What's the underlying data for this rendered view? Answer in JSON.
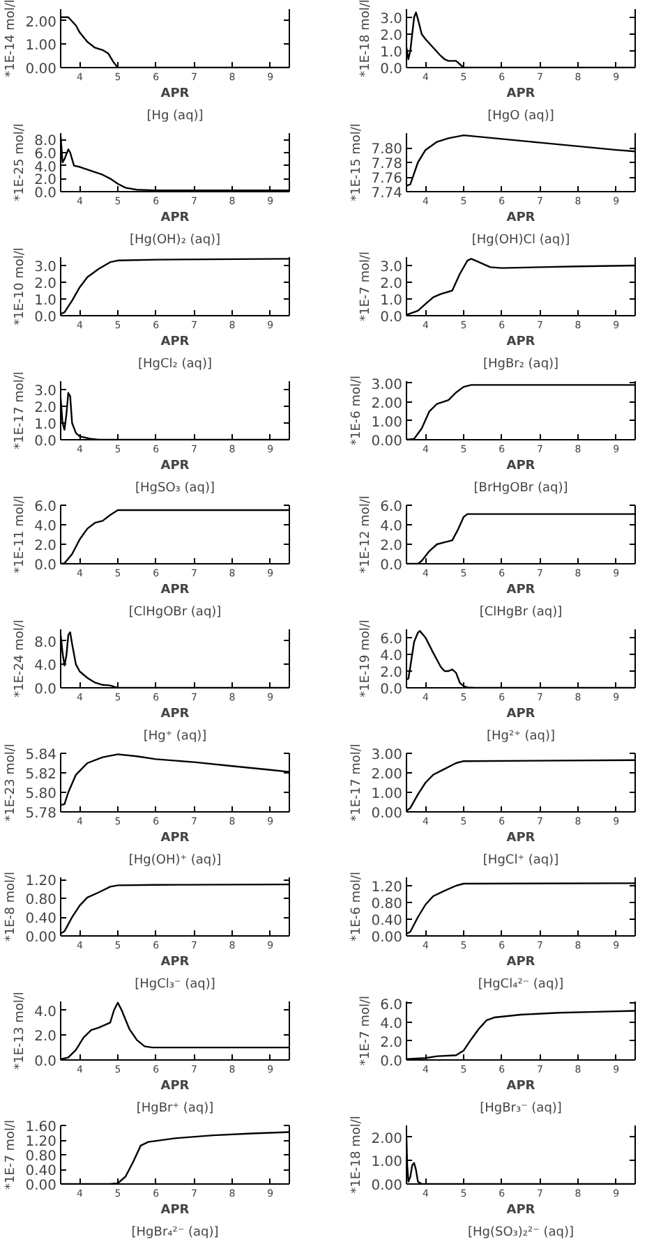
{
  "chart_data": [
    {
      "type": "line",
      "title": "[Hg (aq)]",
      "xlabel": "APR",
      "ylabel": "*1E-14 mol/l",
      "color": "#000000",
      "xlim": [
        3.5,
        9.5
      ],
      "xticks": [
        4,
        5,
        6,
        7,
        8,
        9
      ],
      "ylim": [
        0,
        2.5
      ],
      "yticks": [
        {
          "value": 0,
          "label": "0.00"
        },
        {
          "value": 1,
          "label": "1.00"
        },
        {
          "value": 2,
          "label": "2.00"
        }
      ],
      "x": [
        3.5,
        3.7,
        3.9,
        4.0,
        4.2,
        4.4,
        4.6,
        4.75,
        4.9,
        5.0,
        9.5
      ],
      "values": [
        2.15,
        2.15,
        1.8,
        1.5,
        1.1,
        0.85,
        0.75,
        0.6,
        0.2,
        0.0,
        0.0
      ]
    },
    {
      "type": "line",
      "title": "[HgO (aq)]",
      "xlabel": "APR",
      "ylabel": "*1E-18 mol/l",
      "color": "#000000",
      "xlim": [
        3.5,
        9.5
      ],
      "xticks": [
        4,
        5,
        6,
        7,
        8,
        9
      ],
      "ylim": [
        0,
        3.5
      ],
      "yticks": [
        {
          "value": 0,
          "label": "0.0"
        },
        {
          "value": 1,
          "label": "1.0"
        },
        {
          "value": 2,
          "label": "2.0"
        },
        {
          "value": 3,
          "label": "3.0"
        }
      ],
      "x": [
        3.5,
        3.55,
        3.6,
        3.7,
        3.75,
        3.8,
        3.9,
        4.0,
        4.2,
        4.4,
        4.5,
        4.6,
        4.8,
        4.9,
        5.0,
        9.5
      ],
      "values": [
        1.2,
        0.5,
        1.0,
        3.0,
        3.3,
        2.9,
        2.0,
        1.7,
        1.2,
        0.7,
        0.5,
        0.4,
        0.4,
        0.2,
        0.0,
        0.0
      ]
    },
    {
      "type": "line",
      "title": "[Hg(OH)₂ (aq)]",
      "xlabel": "APR",
      "ylabel": "*1E-25 mol/l",
      "color": "#000000",
      "xlim": [
        3.5,
        9.5
      ],
      "xticks": [
        4,
        5,
        6,
        7,
        8,
        9
      ],
      "ylim": [
        0,
        9
      ],
      "yticks": [
        {
          "value": 0,
          "label": "0.0"
        },
        {
          "value": 2,
          "label": "2.0"
        },
        {
          "value": 4,
          "label": "4.0"
        },
        {
          "value": 6,
          "label": "6.0"
        },
        {
          "value": 8,
          "label": "8.0"
        }
      ],
      "x": [
        3.5,
        3.55,
        3.6,
        3.7,
        3.75,
        3.85,
        4.0,
        4.3,
        4.6,
        4.8,
        5.0,
        5.2,
        5.5,
        6.0,
        9.5
      ],
      "values": [
        8.5,
        4.5,
        5.0,
        6.5,
        6.0,
        4.0,
        3.8,
        3.2,
        2.6,
        2.0,
        1.2,
        0.6,
        0.3,
        0.2,
        0.2
      ]
    },
    {
      "type": "line",
      "title": "[Hg(OH)Cl (aq)]",
      "xlabel": "APR",
      "ylabel": "*1E-15 mol/l",
      "color": "#000000",
      "xlim": [
        3.5,
        9.5
      ],
      "xticks": [
        4,
        5,
        6,
        7,
        8,
        9
      ],
      "ylim": [
        7.74,
        7.82
      ],
      "yticks": [
        {
          "value": 7.74,
          "label": "7.74"
        },
        {
          "value": 7.76,
          "label": "7.76"
        },
        {
          "value": 7.78,
          "label": "7.78"
        },
        {
          "value": 7.8,
          "label": "7.80"
        }
      ],
      "x": [
        3.5,
        3.6,
        3.7,
        3.8,
        4.0,
        4.3,
        4.6,
        5.0,
        6.0,
        7.0,
        8.0,
        9.0,
        9.5
      ],
      "values": [
        7.748,
        7.75,
        7.765,
        7.78,
        7.797,
        7.808,
        7.813,
        7.817,
        7.812,
        7.807,
        7.802,
        7.797,
        7.795
      ]
    },
    {
      "type": "line",
      "title": "[HgCl₂ (aq)]",
      "xlabel": "APR",
      "ylabel": "*1E-10 mol/l",
      "color": "#000000",
      "xlim": [
        3.5,
        9.5
      ],
      "xticks": [
        4,
        5,
        6,
        7,
        8,
        9
      ],
      "ylim": [
        0,
        3.5
      ],
      "yticks": [
        {
          "value": 0,
          "label": "0.0"
        },
        {
          "value": 1,
          "label": "1.0"
        },
        {
          "value": 2,
          "label": "2.0"
        },
        {
          "value": 3,
          "label": "3.0"
        }
      ],
      "x": [
        3.5,
        3.6,
        3.8,
        4.0,
        4.2,
        4.5,
        4.8,
        5.0,
        6.0,
        9.5
      ],
      "values": [
        0.1,
        0.2,
        0.9,
        1.7,
        2.3,
        2.8,
        3.2,
        3.3,
        3.35,
        3.4
      ]
    },
    {
      "type": "line",
      "title": "[HgBr₂ (aq)]",
      "xlabel": "APR",
      "ylabel": "*1E-7 mol/l",
      "color": "#000000",
      "xlim": [
        3.5,
        9.5
      ],
      "xticks": [
        4,
        5,
        6,
        7,
        8,
        9
      ],
      "ylim": [
        0,
        3.5
      ],
      "yticks": [
        {
          "value": 0,
          "label": "0.0"
        },
        {
          "value": 1,
          "label": "1.0"
        },
        {
          "value": 2,
          "label": "2.0"
        },
        {
          "value": 3,
          "label": "3.0"
        }
      ],
      "x": [
        3.5,
        3.8,
        4.0,
        4.2,
        4.4,
        4.7,
        4.9,
        5.1,
        5.2,
        5.4,
        5.7,
        6.0,
        7.0,
        8.0,
        9.5
      ],
      "values": [
        0.05,
        0.3,
        0.7,
        1.1,
        1.3,
        1.5,
        2.5,
        3.3,
        3.4,
        3.2,
        2.9,
        2.85,
        2.9,
        2.95,
        3.0
      ]
    },
    {
      "type": "line",
      "title": "[HgSO₃ (aq)]",
      "xlabel": "APR",
      "ylabel": "*1E-17 mol/l",
      "color": "#000000",
      "xlim": [
        3.5,
        9.5
      ],
      "xticks": [
        4,
        5,
        6,
        7,
        8,
        9
      ],
      "ylim": [
        0,
        3.5
      ],
      "yticks": [
        {
          "value": 0,
          "label": "0.0"
        },
        {
          "value": 1,
          "label": "1.0"
        },
        {
          "value": 2,
          "label": "2.0"
        },
        {
          "value": 3,
          "label": "3.0"
        }
      ],
      "x": [
        3.5,
        3.55,
        3.6,
        3.65,
        3.7,
        3.75,
        3.8,
        3.9,
        4.0,
        4.3,
        4.5,
        9.5
      ],
      "values": [
        2.5,
        1.0,
        0.6,
        1.5,
        2.8,
        2.6,
        1.0,
        0.4,
        0.2,
        0.05,
        0.0,
        0.0
      ]
    },
    {
      "type": "line",
      "title": "[BrHgOBr (aq)]",
      "xlabel": "APR",
      "ylabel": "*1E-6 mol/l",
      "color": "#000000",
      "xlim": [
        3.5,
        9.5
      ],
      "xticks": [
        4,
        5,
        6,
        7,
        8,
        9
      ],
      "ylim": [
        0,
        3.1
      ],
      "yticks": [
        {
          "value": 0,
          "label": "0.00"
        },
        {
          "value": 1,
          "label": "1.00"
        },
        {
          "value": 2,
          "label": "2.00"
        },
        {
          "value": 3,
          "label": "3.00"
        }
      ],
      "x": [
        3.5,
        3.7,
        3.9,
        4.1,
        4.3,
        4.6,
        4.8,
        5.0,
        5.2,
        9.5
      ],
      "values": [
        0.0,
        0.05,
        0.6,
        1.5,
        1.9,
        2.1,
        2.5,
        2.8,
        2.9,
        2.9
      ]
    },
    {
      "type": "line",
      "title": "[ClHgOBr (aq)]",
      "xlabel": "APR",
      "ylabel": "*1E-11 mol/l",
      "color": "#000000",
      "xlim": [
        3.5,
        9.5
      ],
      "xticks": [
        4,
        5,
        6,
        7,
        8,
        9
      ],
      "ylim": [
        0,
        6
      ],
      "yticks": [
        {
          "value": 0,
          "label": "0.0"
        },
        {
          "value": 2,
          "label": "2.0"
        },
        {
          "value": 4,
          "label": "4.0"
        },
        {
          "value": 6,
          "label": "6.0"
        }
      ],
      "x": [
        3.5,
        3.6,
        3.8,
        4.0,
        4.2,
        4.4,
        4.6,
        4.8,
        5.0,
        9.5
      ],
      "values": [
        0.0,
        0.05,
        1.0,
        2.5,
        3.6,
        4.2,
        4.4,
        5.0,
        5.5,
        5.5
      ]
    },
    {
      "type": "line",
      "title": "[ClHgBr (aq)]",
      "xlabel": "APR",
      "ylabel": "*1E-12 mol/l",
      "color": "#000000",
      "xlim": [
        3.5,
        9.5
      ],
      "xticks": [
        4,
        5,
        6,
        7,
        8,
        9
      ],
      "ylim": [
        0,
        6
      ],
      "yticks": [
        {
          "value": 0,
          "label": "0.0"
        },
        {
          "value": 2,
          "label": "2.0"
        },
        {
          "value": 4,
          "label": "4.0"
        },
        {
          "value": 6,
          "label": "6.0"
        }
      ],
      "x": [
        3.5,
        3.8,
        3.9,
        4.1,
        4.3,
        4.5,
        4.7,
        4.85,
        5.0,
        5.1,
        9.5
      ],
      "values": [
        0.0,
        0.0,
        0.3,
        1.3,
        2.0,
        2.2,
        2.4,
        3.5,
        4.8,
        5.1,
        5.1
      ]
    },
    {
      "type": "line",
      "title": "[Hg⁺ (aq)]",
      "xlabel": "APR",
      "ylabel": "*1E-24 mol/l",
      "color": "#000000",
      "xlim": [
        3.5,
        9.5
      ],
      "xticks": [
        4,
        5,
        6,
        7,
        8,
        9
      ],
      "ylim": [
        0,
        10
      ],
      "yticks": [
        {
          "value": 0,
          "label": "0.0"
        },
        {
          "value": 4,
          "label": "4.0"
        },
        {
          "value": 8,
          "label": "8.0"
        }
      ],
      "x": [
        3.5,
        3.55,
        3.6,
        3.65,
        3.7,
        3.75,
        3.8,
        3.9,
        4.0,
        4.2,
        4.4,
        4.6,
        4.8,
        4.9,
        5.0,
        9.5
      ],
      "values": [
        9.0,
        6.0,
        3.8,
        5.5,
        9.0,
        9.5,
        7.5,
        4.0,
        2.8,
        1.7,
        0.9,
        0.5,
        0.4,
        0.2,
        0.0,
        0.0
      ]
    },
    {
      "type": "line",
      "title": "[Hg²⁺ (aq)]",
      "xlabel": "APR",
      "ylabel": "*1E-19 mol/l",
      "color": "#000000",
      "xlim": [
        3.5,
        9.5
      ],
      "xticks": [
        4,
        5,
        6,
        7,
        8,
        9
      ],
      "ylim": [
        0,
        7
      ],
      "yticks": [
        {
          "value": 0,
          "label": "0.0"
        },
        {
          "value": 2,
          "label": "2.0"
        },
        {
          "value": 4,
          "label": "4.0"
        },
        {
          "value": 6,
          "label": "6.0"
        }
      ],
      "x": [
        3.5,
        3.55,
        3.6,
        3.7,
        3.8,
        3.85,
        4.0,
        4.2,
        4.4,
        4.5,
        4.6,
        4.7,
        4.8,
        4.9,
        5.0,
        5.1,
        5.3,
        9.5
      ],
      "values": [
        1.0,
        1.1,
        2.5,
        5.5,
        6.6,
        6.8,
        6.0,
        4.2,
        2.5,
        2.0,
        2.0,
        2.2,
        1.8,
        0.6,
        0.2,
        0.05,
        0.0,
        0.0
      ]
    },
    {
      "type": "line",
      "title": "[Hg(OH)⁺ (aq)]",
      "xlabel": "APR",
      "ylabel": "*1E-23 mol/l",
      "color": "#000000",
      "xlim": [
        3.5,
        9.5
      ],
      "xticks": [
        4,
        5,
        6,
        7,
        8,
        9
      ],
      "ylim": [
        5.78,
        5.84
      ],
      "yticks": [
        {
          "value": 5.78,
          "label": "5.78"
        },
        {
          "value": 5.8,
          "label": "5.80"
        },
        {
          "value": 5.82,
          "label": "5.82"
        },
        {
          "value": 5.84,
          "label": "5.84"
        }
      ],
      "x": [
        3.5,
        3.6,
        3.7,
        3.9,
        4.2,
        4.6,
        5.0,
        5.5,
        6.0,
        7.0,
        8.0,
        9.0,
        9.5
      ],
      "values": [
        5.787,
        5.788,
        5.8,
        5.818,
        5.83,
        5.836,
        5.839,
        5.837,
        5.834,
        5.831,
        5.827,
        5.823,
        5.821
      ]
    },
    {
      "type": "line",
      "title": "[HgCl⁺ (aq)]",
      "xlabel": "APR",
      "ylabel": "*1E-17 mol/l",
      "color": "#000000",
      "xlim": [
        3.5,
        9.5
      ],
      "xticks": [
        4,
        5,
        6,
        7,
        8,
        9
      ],
      "ylim": [
        0,
        3.0
      ],
      "yticks": [
        {
          "value": 0,
          "label": "0.00"
        },
        {
          "value": 1,
          "label": "1.00"
        },
        {
          "value": 2,
          "label": "2.00"
        },
        {
          "value": 3,
          "label": "3.00"
        }
      ],
      "x": [
        3.5,
        3.6,
        3.8,
        4.0,
        4.2,
        4.5,
        4.8,
        5.0,
        9.5
      ],
      "values": [
        0.05,
        0.2,
        0.9,
        1.5,
        1.9,
        2.2,
        2.5,
        2.6,
        2.65
      ]
    },
    {
      "type": "line",
      "title": "[HgCl₃⁻ (aq)]",
      "xlabel": "APR",
      "ylabel": "*1E-8 mol/l",
      "color": "#000000",
      "xlim": [
        3.5,
        9.5
      ],
      "xticks": [
        4,
        5,
        6,
        7,
        8,
        9
      ],
      "ylim": [
        0,
        1.25
      ],
      "yticks": [
        {
          "value": 0,
          "label": "0.00"
        },
        {
          "value": 0.4,
          "label": "0.40"
        },
        {
          "value": 0.8,
          "label": "0.80"
        },
        {
          "value": 1.2,
          "label": "1.20"
        }
      ],
      "x": [
        3.5,
        3.6,
        3.8,
        4.0,
        4.2,
        4.5,
        4.8,
        5.0,
        6.0,
        9.5
      ],
      "values": [
        0.05,
        0.1,
        0.4,
        0.65,
        0.82,
        0.93,
        1.05,
        1.08,
        1.09,
        1.1
      ]
    },
    {
      "type": "line",
      "title": "[HgCl₄²⁻ (aq)]",
      "xlabel": "APR",
      "ylabel": "*1E-6 mol/l",
      "color": "#000000",
      "xlim": [
        3.5,
        9.5
      ],
      "xticks": [
        4,
        5,
        6,
        7,
        8,
        9
      ],
      "ylim": [
        0,
        1.4
      ],
      "yticks": [
        {
          "value": 0,
          "label": "0.00"
        },
        {
          "value": 0.4,
          "label": "0.40"
        },
        {
          "value": 0.8,
          "label": "0.80"
        },
        {
          "value": 1.2,
          "label": "1.20"
        }
      ],
      "x": [
        3.5,
        3.6,
        3.8,
        4.0,
        4.2,
        4.5,
        4.8,
        5.0,
        9.5
      ],
      "values": [
        0.05,
        0.1,
        0.45,
        0.75,
        0.95,
        1.08,
        1.2,
        1.25,
        1.26
      ]
    },
    {
      "type": "line",
      "title": "[HgBr⁺ (aq)]",
      "xlabel": "APR",
      "ylabel": "*1E-13 mol/l",
      "color": "#000000",
      "xlim": [
        3.5,
        9.5
      ],
      "xticks": [
        4,
        5,
        6,
        7,
        8,
        9
      ],
      "ylim": [
        0,
        4.7
      ],
      "yticks": [
        {
          "value": 0,
          "label": "0.0"
        },
        {
          "value": 2,
          "label": "2.0"
        },
        {
          "value": 4,
          "label": "4.0"
        }
      ],
      "x": [
        3.5,
        3.7,
        3.9,
        4.1,
        4.3,
        4.5,
        4.8,
        4.9,
        5.0,
        5.1,
        5.3,
        5.5,
        5.7,
        5.9,
        9.5
      ],
      "values": [
        0.05,
        0.2,
        0.8,
        1.8,
        2.4,
        2.6,
        3.0,
        4.0,
        4.6,
        4.0,
        2.5,
        1.6,
        1.1,
        1.0,
        1.0
      ]
    },
    {
      "type": "line",
      "title": "[HgBr₃⁻ (aq)]",
      "xlabel": "APR",
      "ylabel": "*1E-7 mol/l",
      "color": "#000000",
      "xlim": [
        3.5,
        9.5
      ],
      "xticks": [
        4,
        5,
        6,
        7,
        8,
        9
      ],
      "ylim": [
        0,
        6.2
      ],
      "yticks": [
        {
          "value": 0,
          "label": "0.0"
        },
        {
          "value": 2,
          "label": "2.0"
        },
        {
          "value": 4,
          "label": "4.0"
        },
        {
          "value": 6,
          "label": "6.0"
        }
      ],
      "x": [
        3.5,
        4.0,
        4.3,
        4.8,
        5.0,
        5.2,
        5.4,
        5.6,
        5.8,
        6.5,
        7.5,
        8.5,
        9.5
      ],
      "values": [
        0.1,
        0.2,
        0.4,
        0.5,
        1.0,
        2.2,
        3.3,
        4.2,
        4.5,
        4.8,
        5.0,
        5.1,
        5.2
      ]
    },
    {
      "type": "line",
      "title": "[HgBr₄²⁻ (aq)]",
      "xlabel": "APR",
      "ylabel": "*1E-7 mol/l",
      "color": "#000000",
      "xlim": [
        3.5,
        9.5
      ],
      "xticks": [
        4,
        5,
        6,
        7,
        8,
        9
      ],
      "ylim": [
        0,
        1.6
      ],
      "yticks": [
        {
          "value": 0,
          "label": "0.00"
        },
        {
          "value": 0.4,
          "label": "0.40"
        },
        {
          "value": 0.8,
          "label": "0.80"
        },
        {
          "value": 1.2,
          "label": "1.20"
        },
        {
          "value": 1.6,
          "label": "1.60"
        }
      ],
      "x": [
        3.5,
        4.8,
        5.0,
        5.2,
        5.4,
        5.6,
        5.8,
        6.5,
        7.5,
        8.5,
        9.5
      ],
      "values": [
        0.0,
        0.0,
        0.02,
        0.2,
        0.6,
        1.05,
        1.15,
        1.25,
        1.33,
        1.38,
        1.42
      ]
    },
    {
      "type": "line",
      "title": "[Hg(SO₃)₂²⁻ (aq)]",
      "xlabel": "APR",
      "ylabel": "*1E-18 mol/l",
      "color": "#000000",
      "xlim": [
        3.5,
        9.5
      ],
      "xticks": [
        4,
        5,
        6,
        7,
        8,
        9
      ],
      "ylim": [
        0,
        2.5
      ],
      "yticks": [
        {
          "value": 0,
          "label": "0.00"
        },
        {
          "value": 1,
          "label": "1.00"
        },
        {
          "value": 2,
          "label": "2.00"
        }
      ],
      "x": [
        3.5,
        3.52,
        3.55,
        3.6,
        3.65,
        3.7,
        3.75,
        3.8,
        3.9,
        9.5
      ],
      "values": [
        2.0,
        0.8,
        0.1,
        0.3,
        0.8,
        0.9,
        0.6,
        0.1,
        0.0,
        0.0
      ]
    }
  ]
}
